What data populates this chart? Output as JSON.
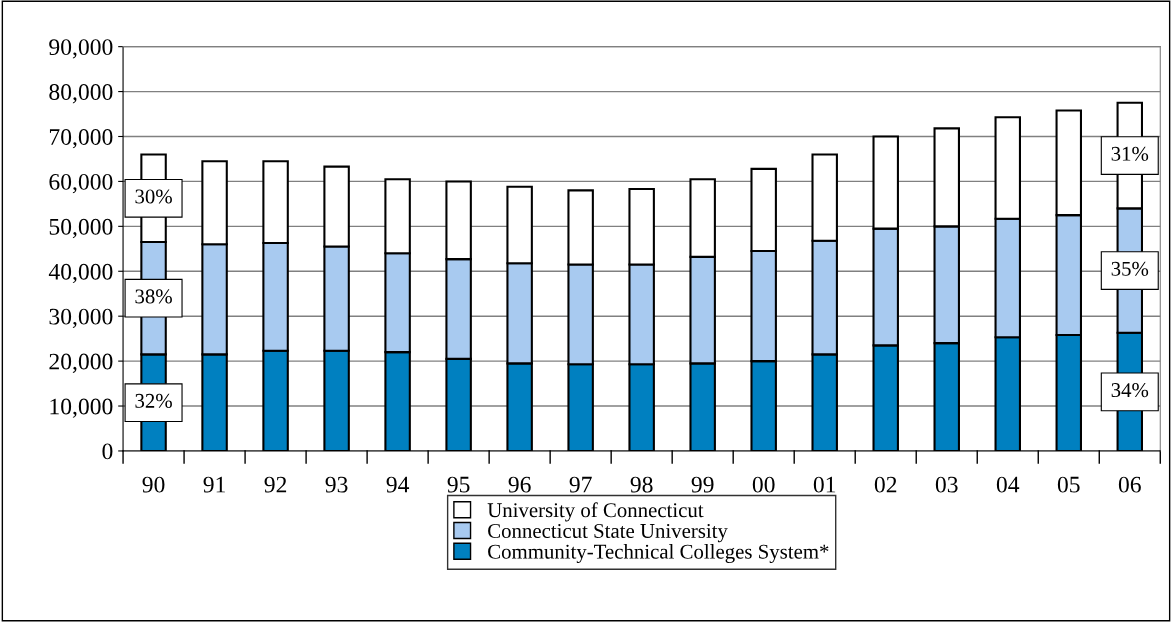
{
  "chart_data": {
    "type": "bar",
    "stacked": true,
    "categories": [
      "90",
      "91",
      "92",
      "93",
      "94",
      "95",
      "96",
      "97",
      "98",
      "99",
      "00",
      "01",
      "02",
      "03",
      "04",
      "05",
      "06"
    ],
    "series": [
      {
        "name": "Community-Technical Colleges System*",
        "color": "#0080c0",
        "values": [
          21500,
          21500,
          22300,
          22300,
          22000,
          20500,
          19500,
          19300,
          19300,
          19500,
          20000,
          21500,
          23500,
          24000,
          25300,
          25800,
          26300
        ]
      },
      {
        "name": "Connecticut State University",
        "color": "#a8caf0",
        "values": [
          25000,
          24500,
          24000,
          23200,
          22000,
          22200,
          22300,
          22200,
          22200,
          23700,
          24500,
          25300,
          26000,
          26000,
          26400,
          26700,
          27700
        ]
      },
      {
        "name": "University of Connecticut",
        "color": "#ffffff",
        "values": [
          19500,
          18500,
          18200,
          17800,
          16500,
          17300,
          17000,
          16500,
          16800,
          17300,
          18300,
          19200,
          20500,
          21800,
          22600,
          23300,
          23500
        ]
      }
    ],
    "ylim": [
      0,
      90000
    ],
    "yticks": [
      {
        "value": 0,
        "label": "0"
      },
      {
        "value": 10000,
        "label": "10,000"
      },
      {
        "value": 20000,
        "label": "20,000"
      },
      {
        "value": 30000,
        "label": "30,000"
      },
      {
        "value": 40000,
        "label": "40,000"
      },
      {
        "value": 50000,
        "label": "50,000"
      },
      {
        "value": 60000,
        "label": "60,000"
      },
      {
        "value": 70000,
        "label": "70,000"
      },
      {
        "value": 80000,
        "label": "80,000"
      },
      {
        "value": 90000,
        "label": "90,000"
      }
    ],
    "grid": "y",
    "legend": "bottom",
    "annotations": [
      "32%",
      "38%",
      "30%",
      "34%",
      "35%",
      "31%"
    ]
  }
}
